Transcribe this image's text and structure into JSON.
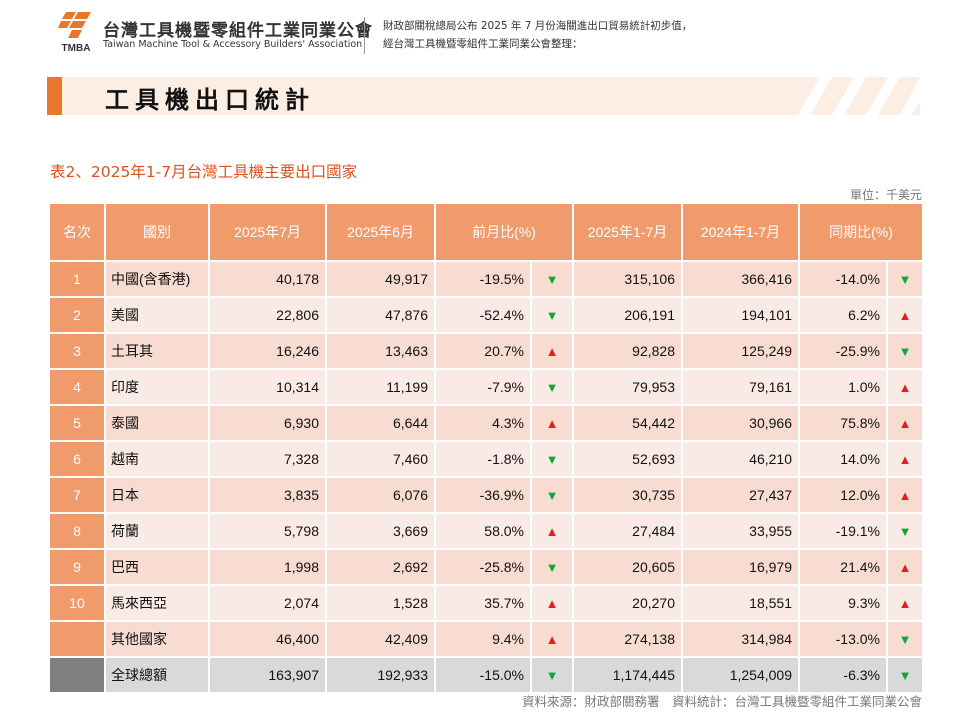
{
  "header": {
    "logo_text": "TMBA",
    "org_name_cn": "台灣工具機暨零組件工業同業公會",
    "org_name_en": "Taiwan Machine Tool & Accessory Builders' Association",
    "source_note_line1": "財政部關稅總局公布 2025 年 7 月份海關進出口貿易統計初步值，",
    "source_note_line2": "經台灣工具機暨零組件工業同業公會整理："
  },
  "banner": {
    "title": "工具機出口統計"
  },
  "table": {
    "title": "表2、2025年1-7月台灣工具機主要出口國家",
    "unit": "單位：千美元",
    "headers": [
      "名次",
      "國別",
      "2025年7月",
      "2025年6月",
      "前月比(%)",
      "2025年1-7月",
      "2024年1-7月",
      "同期比(%)"
    ],
    "rows": [
      {
        "rank": "1",
        "country": "中國(含香港)",
        "jul": "40,178",
        "jun": "49,917",
        "mom": "-19.5%",
        "mom_dir": "down",
        "ytd25": "315,106",
        "ytd24": "366,416",
        "yoy": "-14.0%",
        "yoy_dir": "down"
      },
      {
        "rank": "2",
        "country": "美國",
        "jul": "22,806",
        "jun": "47,876",
        "mom": "-52.4%",
        "mom_dir": "down",
        "ytd25": "206,191",
        "ytd24": "194,101",
        "yoy": "6.2%",
        "yoy_dir": "up"
      },
      {
        "rank": "3",
        "country": "土耳其",
        "jul": "16,246",
        "jun": "13,463",
        "mom": "20.7%",
        "mom_dir": "up",
        "ytd25": "92,828",
        "ytd24": "125,249",
        "yoy": "-25.9%",
        "yoy_dir": "down"
      },
      {
        "rank": "4",
        "country": "印度",
        "jul": "10,314",
        "jun": "11,199",
        "mom": "-7.9%",
        "mom_dir": "down",
        "ytd25": "79,953",
        "ytd24": "79,161",
        "yoy": "1.0%",
        "yoy_dir": "up"
      },
      {
        "rank": "5",
        "country": "泰國",
        "jul": "6,930",
        "jun": "6,644",
        "mom": "4.3%",
        "mom_dir": "up",
        "ytd25": "54,442",
        "ytd24": "30,966",
        "yoy": "75.8%",
        "yoy_dir": "up"
      },
      {
        "rank": "6",
        "country": "越南",
        "jul": "7,328",
        "jun": "7,460",
        "mom": "-1.8%",
        "mom_dir": "down",
        "ytd25": "52,693",
        "ytd24": "46,210",
        "yoy": "14.0%",
        "yoy_dir": "up"
      },
      {
        "rank": "7",
        "country": "日本",
        "jul": "3,835",
        "jun": "6,076",
        "mom": "-36.9%",
        "mom_dir": "down",
        "ytd25": "30,735",
        "ytd24": "27,437",
        "yoy": "12.0%",
        "yoy_dir": "up"
      },
      {
        "rank": "8",
        "country": "荷蘭",
        "jul": "5,798",
        "jun": "3,669",
        "mom": "58.0%",
        "mom_dir": "up",
        "ytd25": "27,484",
        "ytd24": "33,955",
        "yoy": "-19.1%",
        "yoy_dir": "down"
      },
      {
        "rank": "9",
        "country": "巴西",
        "jul": "1,998",
        "jun": "2,692",
        "mom": "-25.8%",
        "mom_dir": "down",
        "ytd25": "20,605",
        "ytd24": "16,979",
        "yoy": "21.4%",
        "yoy_dir": "up"
      },
      {
        "rank": "10",
        "country": "馬來西亞",
        "jul": "2,074",
        "jun": "1,528",
        "mom": "35.7%",
        "mom_dir": "up",
        "ytd25": "20,270",
        "ytd24": "18,551",
        "yoy": "9.3%",
        "yoy_dir": "up"
      },
      {
        "rank": "",
        "country": "其他國家",
        "jul": "46,400",
        "jun": "42,409",
        "mom": "9.4%",
        "mom_dir": "up",
        "ytd25": "274,138",
        "ytd24": "314,984",
        "yoy": "-13.0%",
        "yoy_dir": "down",
        "kind": "other"
      },
      {
        "rank": "",
        "country": "全球總額",
        "jul": "163,907",
        "jun": "192,933",
        "mom": "-15.0%",
        "mom_dir": "down",
        "ytd25": "1,174,445",
        "ytd24": "1,254,009",
        "yoy": "-6.3%",
        "yoy_dir": "down",
        "kind": "total"
      }
    ]
  },
  "arrows": {
    "up": "▲",
    "down": "▼"
  },
  "colors": {
    "accent": "#e8762c",
    "header_cell": "#ef9b6c",
    "row_odd": "#f8dcd2",
    "row_even": "#faeae5",
    "total_row": "#d9d9d9",
    "up_arrow": "#e02020",
    "down_arrow": "#1aa33a",
    "title_text": "#d9531e"
  },
  "footer": {
    "source": "資料來源：財政部關務署　資料統計：台灣工具機暨零組件工業同業公會"
  }
}
